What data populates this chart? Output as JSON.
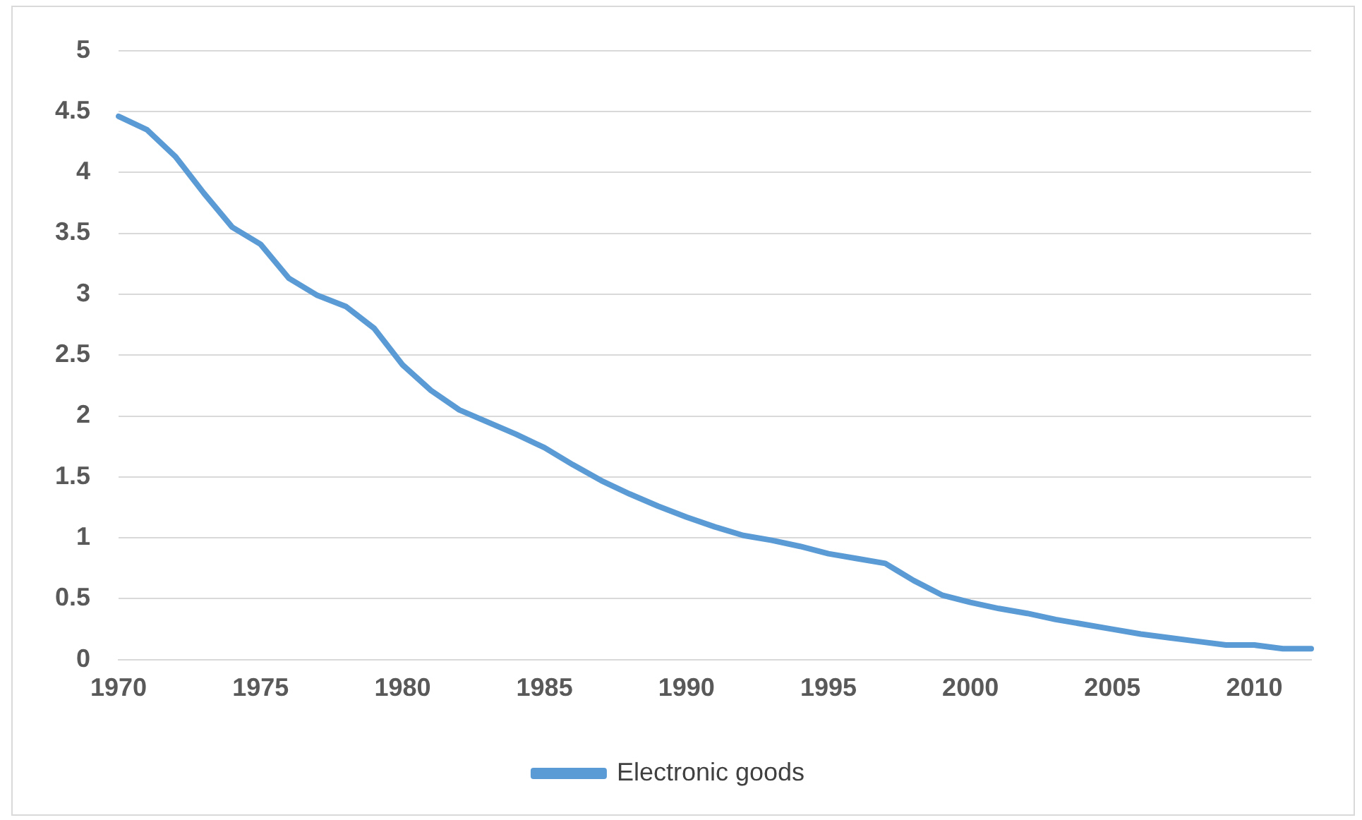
{
  "chart_data": {
    "type": "line",
    "categories": [
      "1970",
      null,
      null,
      null,
      null,
      "1975",
      null,
      null,
      null,
      null,
      "1980",
      null,
      null,
      null,
      null,
      "1985",
      null,
      null,
      null,
      null,
      "1990",
      null,
      null,
      null,
      null,
      "1995",
      null,
      null,
      null,
      null,
      "2000",
      null,
      null,
      null,
      null,
      "2005",
      null,
      null,
      null,
      null,
      "2010",
      null,
      null
    ],
    "series": [
      {
        "name": "Electronic goods",
        "color": "#5b9bd5",
        "values": [
          4.46,
          4.35,
          4.13,
          3.83,
          3.55,
          3.41,
          3.13,
          2.99,
          2.9,
          2.72,
          2.42,
          2.21,
          2.05,
          1.95,
          1.85,
          1.74,
          1.6,
          1.47,
          1.36,
          1.26,
          1.17,
          1.09,
          1.02,
          0.98,
          0.93,
          0.87,
          0.83,
          0.79,
          0.65,
          0.53,
          0.47,
          0.42,
          0.38,
          0.33,
          0.29,
          0.25,
          0.21,
          0.18,
          0.15,
          0.12,
          0.12,
          0.09,
          0.09
        ]
      }
    ],
    "ylim": [
      0,
      5
    ],
    "yticks": [
      0,
      0.5,
      1,
      1.5,
      2,
      2.5,
      3,
      3.5,
      4,
      4.5,
      5
    ],
    "grid": "y",
    "legend": "bottom",
    "marker": "none",
    "line_style": "solid"
  }
}
